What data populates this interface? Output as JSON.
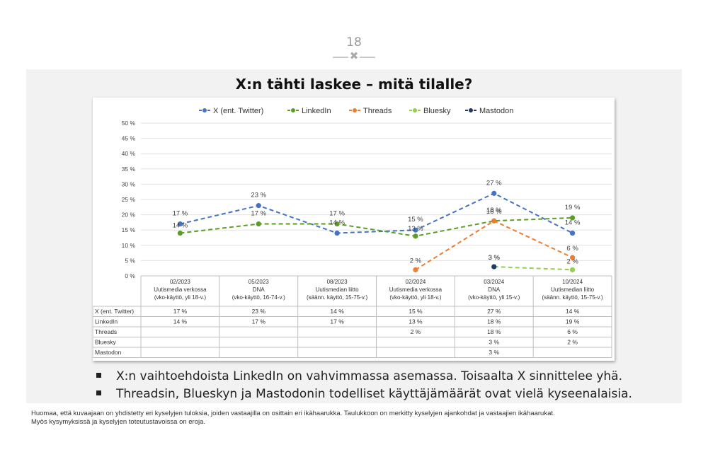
{
  "page": {
    "number": "18",
    "divider_icon": "cross-icon",
    "title": "X:n tähti laskee – mitä tilalle?",
    "bullets": [
      "X:n vaihtoehdoista LinkedIn on vahvimmassa asemassa. Toisaalta X sinnittelee yhä.",
      "Threadsin, Blueskyn ja Mastodonin todelliset käyttäjämäärät ovat vielä kyseenalaisia."
    ],
    "footnote_lines": [
      "Huomaa, että kuvaajaan on yhdistetty eri kyselyjen tuloksia, joiden vastaajilla on osittain eri ikähaarukka. Taulukkoon on merkitty kyselyjen ajankohdat ja vastaajien ikähaarukat.",
      "Myös kysymyksissä ja kyselyjen toteutustavoissa on eroja."
    ]
  },
  "chart_data": {
    "type": "line",
    "categories": [
      [
        "02/2023",
        "Uutismedia verkossa",
        "(vko-käyttö, yli 18-v.)"
      ],
      [
        "05/2023",
        "DNA",
        "(vko-käyttö, 16-74-v.)"
      ],
      [
        "08/2023",
        "Uutismedian liitto",
        "(säänn. käyttö, 15-75-v.)"
      ],
      [
        "02/2024",
        "Uutismedia verkossa",
        "(vko-käyttö, yli 18-v.)"
      ],
      [
        "03/2024",
        "DNA",
        "(vko-käyttö, yli 15-v.)"
      ],
      [
        "10/2024",
        "Uutismedian liitto",
        "(säänn. käyttö, 15-75-v.)"
      ]
    ],
    "ylim": [
      0,
      50
    ],
    "yticks": [
      "0 %",
      "5 %",
      "10 %",
      "15 %",
      "20 %",
      "25 %",
      "30 %",
      "35 %",
      "40 %",
      "45 %",
      "50 %"
    ],
    "grid": true,
    "legend_position": "top",
    "line_style": "dashed",
    "series": [
      {
        "name": "X (ent. Twitter)",
        "table_name": "X (ent. Twitter)",
        "color": "#4472C4",
        "values": [
          17,
          23,
          14,
          15,
          27,
          14
        ],
        "labels": [
          "17 %",
          "23 %",
          "14 %",
          "15 %",
          "27 %",
          "14 %"
        ]
      },
      {
        "name": "LinkedIn",
        "table_name": "LinkedIn",
        "color": "#5B9E25",
        "values": [
          14,
          17,
          17,
          13,
          18,
          19
        ],
        "labels": [
          "14 %",
          "17 %",
          "17 %",
          "13 %",
          "18 %",
          "19 %"
        ]
      },
      {
        "name": "Threads",
        "table_name": "Threads",
        "color": "#ED7D31",
        "values": [
          null,
          null,
          null,
          2,
          18,
          6
        ],
        "labels": [
          "",
          "",
          "",
          "2 %",
          "18 %",
          "6 %"
        ]
      },
      {
        "name": "Bluesky",
        "table_name": "Bluesky",
        "color": "#92D050",
        "values": [
          null,
          null,
          null,
          null,
          3,
          2
        ],
        "labels": [
          "",
          "",
          "",
          "",
          "3 %",
          "2 %"
        ]
      },
      {
        "name": "Mastodon",
        "table_name": "Mastodon",
        "color": "#203864",
        "values": [
          null,
          null,
          null,
          null,
          3,
          null
        ],
        "labels": [
          "",
          "",
          "",
          "",
          "3 %",
          ""
        ]
      }
    ]
  }
}
